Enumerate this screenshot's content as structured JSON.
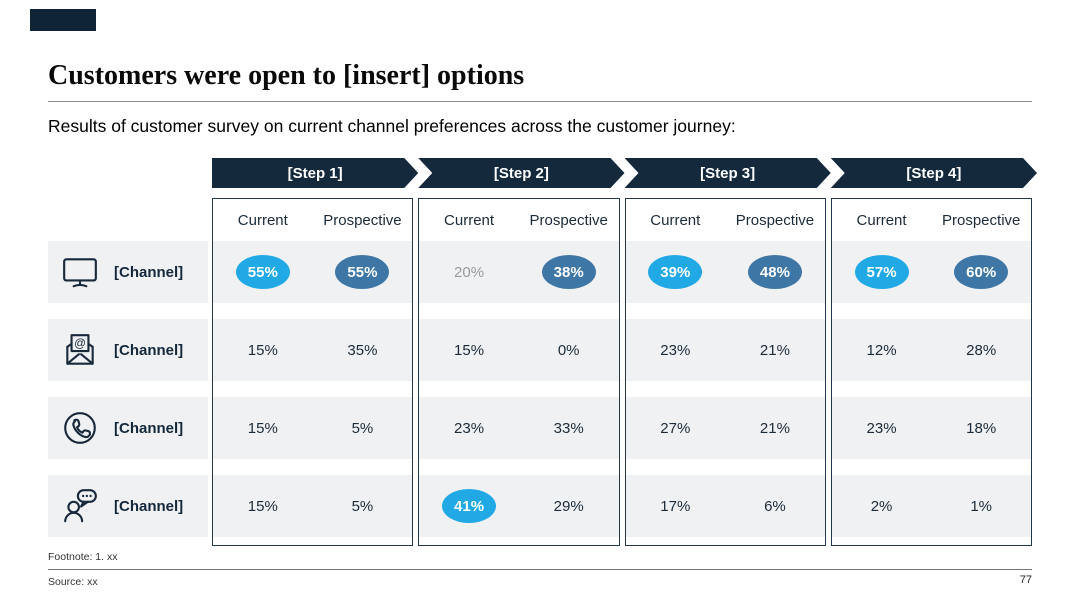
{
  "header": {
    "title": "Customers were open to [insert] options",
    "subtitle": "Results of customer survey on current channel preferences across the customer journey:"
  },
  "footer": {
    "footnote": "Footnote: 1. xx",
    "source": "Source: xx",
    "page_number": "77"
  },
  "colors": {
    "navy": "#142A3C",
    "highlight_current": "#21A9E6",
    "highlight_prospective": "#3E76A6",
    "row_stripe": "#F0F1F2",
    "muted_text": "#9A9A9B"
  },
  "table": {
    "col_headers": [
      "Current",
      "Prospective"
    ],
    "channels": [
      {
        "label": "[Channel]",
        "icon": "monitor-icon"
      },
      {
        "label": "[Channel]",
        "icon": "email-icon"
      },
      {
        "label": "[Channel]",
        "icon": "phone-icon"
      },
      {
        "label": "[Channel]",
        "icon": "chat-icon"
      }
    ],
    "steps": [
      {
        "label": "[Step 1]",
        "rows": [
          [
            {
              "v": "55%",
              "style": "bright"
            },
            {
              "v": "55%",
              "style": "dark"
            }
          ],
          [
            {
              "v": "15%",
              "style": "plain"
            },
            {
              "v": "35%",
              "style": "plain"
            }
          ],
          [
            {
              "v": "15%",
              "style": "plain"
            },
            {
              "v": "5%",
              "style": "plain"
            }
          ],
          [
            {
              "v": "15%",
              "style": "plain"
            },
            {
              "v": "5%",
              "style": "plain"
            }
          ]
        ]
      },
      {
        "label": "[Step 2]",
        "rows": [
          [
            {
              "v": "20%",
              "style": "muted"
            },
            {
              "v": "38%",
              "style": "dark"
            }
          ],
          [
            {
              "v": "15%",
              "style": "plain"
            },
            {
              "v": "0%",
              "style": "plain"
            }
          ],
          [
            {
              "v": "23%",
              "style": "plain"
            },
            {
              "v": "33%",
              "style": "plain"
            }
          ],
          [
            {
              "v": "41%",
              "style": "bright"
            },
            {
              "v": "29%",
              "style": "plain"
            }
          ]
        ]
      },
      {
        "label": "[Step 3]",
        "rows": [
          [
            {
              "v": "39%",
              "style": "bright"
            },
            {
              "v": "48%",
              "style": "dark"
            }
          ],
          [
            {
              "v": "23%",
              "style": "plain"
            },
            {
              "v": "21%",
              "style": "plain"
            }
          ],
          [
            {
              "v": "27%",
              "style": "plain"
            },
            {
              "v": "21%",
              "style": "plain"
            }
          ],
          [
            {
              "v": "17%",
              "style": "plain"
            },
            {
              "v": "6%",
              "style": "plain"
            }
          ]
        ]
      },
      {
        "label": "[Step 4]",
        "rows": [
          [
            {
              "v": "57%",
              "style": "bright"
            },
            {
              "v": "60%",
              "style": "dark"
            }
          ],
          [
            {
              "v": "12%",
              "style": "plain"
            },
            {
              "v": "28%",
              "style": "plain"
            }
          ],
          [
            {
              "v": "23%",
              "style": "plain"
            },
            {
              "v": "18%",
              "style": "plain"
            }
          ],
          [
            {
              "v": "2%",
              "style": "plain"
            },
            {
              "v": "1%",
              "style": "plain"
            }
          ]
        ]
      }
    ]
  }
}
